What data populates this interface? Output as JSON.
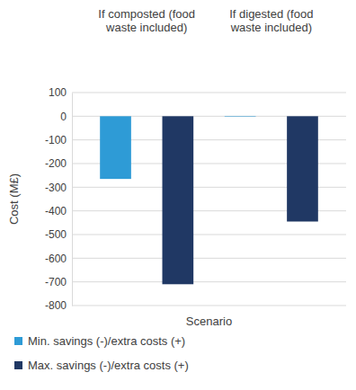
{
  "chart_data": {
    "type": "bar",
    "categories": [
      "If composted (food waste included)",
      "If digested (food waste included)"
    ],
    "x_label": "Scenario",
    "y_label": "Cost (M£)",
    "series": [
      {
        "name": "Min. savings (-)/extra costs (+)",
        "color": "#2e9bd6",
        "values": [
          -265,
          -2
        ]
      },
      {
        "name": "Max. savings (-)/extra costs (+)",
        "color": "#203864",
        "values": [
          -710,
          -445
        ]
      }
    ],
    "ylim": [
      -800,
      100
    ],
    "yticks": [
      -800,
      -700,
      -600,
      -500,
      -400,
      -300,
      -200,
      -100,
      0,
      100
    ],
    "grid": true,
    "legend": "bottom"
  }
}
